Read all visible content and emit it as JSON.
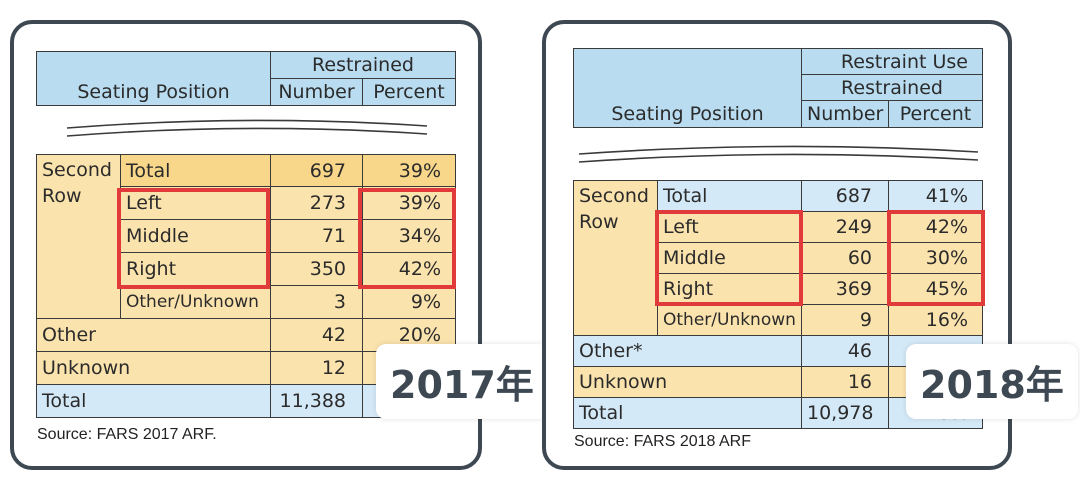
{
  "left": {
    "header": {
      "seating": "Seating Position",
      "restrained": "Restrained",
      "number": "Number",
      "percent": "Percent"
    },
    "group": {
      "line1": "Second",
      "line2": "Row"
    },
    "rows": [
      {
        "label": "Total",
        "number": "697",
        "percent": "39%"
      },
      {
        "label": "Left",
        "number": "273",
        "percent": "39%"
      },
      {
        "label": "Middle",
        "number": "71",
        "percent": "34%"
      },
      {
        "label": "Right",
        "number": "350",
        "percent": "42%"
      },
      {
        "label": "Other/Unknown",
        "number": "3",
        "percent": "9%"
      }
    ],
    "other": {
      "label": "Other",
      "number": "42",
      "percent": "20%"
    },
    "unknown": {
      "label": "Unknown",
      "number": "12",
      "percent": ""
    },
    "total": {
      "label": "Total",
      "number": "11,388",
      "percent": ""
    },
    "source": "Source: FARS 2017 ARF.",
    "badge": "2017年"
  },
  "right": {
    "header": {
      "top": "Restraint Use",
      "seating": "Seating Position",
      "restrained": "Restrained",
      "number": "Number",
      "percent": "Percent"
    },
    "group": {
      "line1": "Second",
      "line2": "Row"
    },
    "rows": [
      {
        "label": "Total",
        "number": "687",
        "percent": "41%"
      },
      {
        "label": "Left",
        "number": "249",
        "percent": "42%"
      },
      {
        "label": "Middle",
        "number": "60",
        "percent": "30%"
      },
      {
        "label": "Right",
        "number": "369",
        "percent": "45%"
      },
      {
        "label": "Other/Unknown",
        "number": "9",
        "percent": "16%"
      }
    ],
    "other": {
      "label": "Other*",
      "number": "46",
      "percent": ""
    },
    "unknown": {
      "label": "Unknown",
      "number": "16",
      "percent": ""
    },
    "total": {
      "label": "Total",
      "number": "10,978",
      "percent": "48%"
    },
    "source": "Source: FARS 2018 ARF",
    "badge": "2018年"
  },
  "colors": {
    "border": "#3d4852",
    "highlight": "#e03a3a",
    "header_blue": "#b9dcf0",
    "row_yellow": "#fbe3ad"
  }
}
